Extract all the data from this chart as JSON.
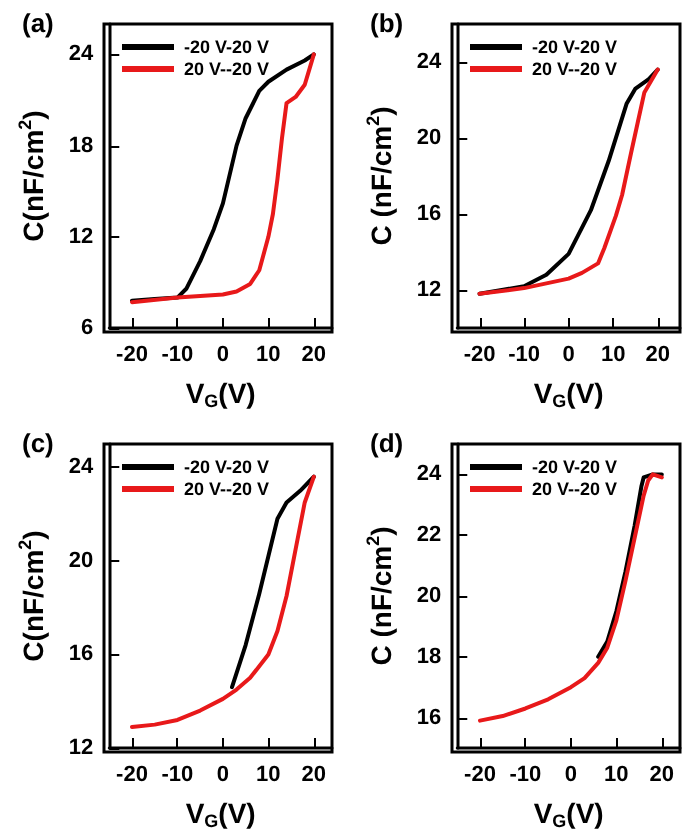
{
  "chart_data": [
    {
      "type": "line",
      "title": "(a)",
      "xlabel": "V$_{G}$(V)",
      "ylabel": "C(nF/cm$^{2}$)",
      "xlim": [
        -25,
        24
      ],
      "xticks": [
        -20,
        -10,
        0,
        10,
        20
      ],
      "ylim": [
        6,
        26
      ],
      "yticks": [
        6,
        12,
        18,
        24
      ],
      "legend": "top left",
      "marker": "none",
      "line_style": "solid",
      "grid": false,
      "series": [
        {
          "name": "-20 V-20 V",
          "color": "#000000",
          "x": [
            -20,
            -15,
            -10,
            -8,
            -5,
            -2,
            0,
            3,
            5,
            8,
            10,
            14,
            18,
            20
          ],
          "values": [
            7.8,
            7.9,
            8.0,
            8.6,
            10.4,
            12.5,
            14.2,
            18,
            19.8,
            21.6,
            22.2,
            23,
            23.6,
            24
          ]
        },
        {
          "name": "20 V--20 V",
          "color": "#e8191a",
          "x": [
            20,
            19,
            18,
            16,
            14,
            13,
            12,
            11,
            10,
            8,
            6,
            3,
            0,
            -10,
            -20
          ],
          "values": [
            24,
            23,
            22,
            21.2,
            20.8,
            18.5,
            15.8,
            13.5,
            12,
            9.8,
            8.9,
            8.4,
            8.2,
            8.0,
            7.7
          ]
        }
      ]
    },
    {
      "type": "line",
      "title": "(b)",
      "xlabel": "V$_{G}$(V)",
      "ylabel": "C (nF/cm$^{2}$)",
      "xlim": [
        -25,
        25
      ],
      "xticks": [
        -20,
        -10,
        0,
        10,
        20
      ],
      "ylim": [
        10,
        26
      ],
      "yticks": [
        12,
        16,
        20,
        24
      ],
      "legend": "top left",
      "marker": "none",
      "line_style": "solid",
      "grid": false,
      "series": [
        {
          "name": "-20 V-20 V",
          "color": "#000000",
          "x": [
            -20,
            -15,
            -10,
            -5,
            0,
            5,
            9,
            13,
            15,
            18,
            20
          ],
          "values": [
            11.8,
            12,
            12.2,
            12.8,
            13.9,
            16.2,
            18.8,
            21.8,
            22.6,
            23.1,
            23.6
          ]
        },
        {
          "name": "20 V--20 V",
          "color": "#e8191a",
          "x": [
            20,
            17,
            15.5,
            14,
            12,
            10.6,
            8,
            6.6,
            3,
            0,
            -10,
            -20
          ],
          "values": [
            23.6,
            22.4,
            20.8,
            19.2,
            17,
            15.9,
            14.2,
            13.4,
            12.9,
            12.6,
            12.1,
            11.8
          ]
        }
      ]
    },
    {
      "type": "line",
      "title": "(c)",
      "xlabel": "V$_{G}$(V)",
      "ylabel": "C(nF/cm$^{2}$)",
      "xlim": [
        -25,
        24
      ],
      "xticks": [
        -20,
        -10,
        0,
        10,
        20
      ],
      "ylim": [
        12,
        25
      ],
      "yticks": [
        12,
        16,
        20,
        24
      ],
      "legend": "top left",
      "marker": "none",
      "line_style": "solid",
      "grid": false,
      "series": [
        {
          "name": "-20 V-20 V",
          "color": "#000000",
          "x": [
            2,
            5,
            8,
            10,
            12,
            14,
            17,
            20
          ],
          "values": [
            14.6,
            16.4,
            18.6,
            20.2,
            21.8,
            22.5,
            23,
            23.6
          ]
        },
        {
          "name": "20 V--20 V",
          "color": "#e8191a",
          "x": [
            20,
            18,
            16,
            14,
            12,
            10,
            6,
            3,
            0,
            -5,
            -10,
            -15,
            -20
          ],
          "values": [
            23.6,
            22.5,
            20.5,
            18.5,
            17,
            16,
            15,
            14.5,
            14.1,
            13.6,
            13.2,
            13,
            12.9
          ]
        }
      ]
    },
    {
      "type": "line",
      "title": "(d)",
      "xlabel": "V$_{G}$(V)",
      "ylabel": "C (nF/cm$^{2}$)",
      "xlim": [
        -25,
        24
      ],
      "xticks": [
        -20,
        -10,
        0,
        10,
        20
      ],
      "ylim": [
        15,
        25
      ],
      "yticks": [
        16,
        18,
        20,
        22,
        24
      ],
      "legend": "top left",
      "marker": "none",
      "line_style": "solid",
      "grid": false,
      "series": [
        {
          "name": "-20 V-20 V",
          "color": "#000000",
          "x": [
            6,
            8,
            10,
            12,
            14,
            15.5,
            16,
            18,
            20
          ],
          "values": [
            18,
            18.5,
            19.5,
            20.8,
            22.3,
            23.6,
            23.9,
            24,
            24
          ]
        },
        {
          "name": "20 V--20 V",
          "color": "#e8191a",
          "x": [
            20,
            18,
            17,
            16,
            14,
            12,
            10,
            8,
            6,
            3,
            0,
            -5,
            -10,
            -15,
            -20
          ],
          "values": [
            23.9,
            24,
            23.8,
            23.3,
            21.9,
            20.5,
            19.2,
            18.3,
            17.8,
            17.3,
            17,
            16.6,
            16.3,
            16.05,
            15.9
          ]
        }
      ]
    }
  ]
}
